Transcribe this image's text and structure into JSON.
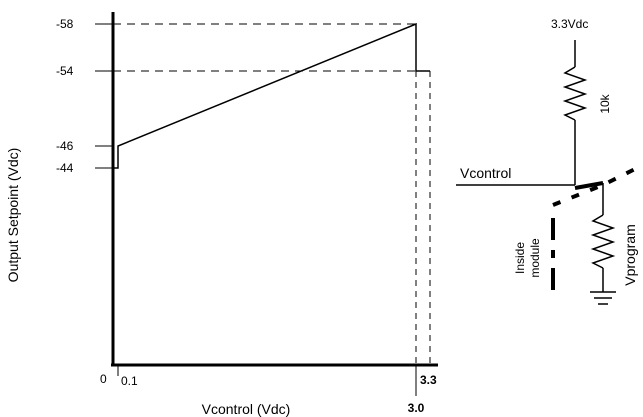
{
  "chart_data": {
    "type": "line",
    "title": "",
    "xlabel": "Vcontrol (Vdc)",
    "ylabel": "Output Setpoint (Vdc)",
    "x_origin_label": "0",
    "x_tick_labels": [
      "0.1",
      "3.0",
      "3.3"
    ],
    "y_tick_labels": [
      "-58",
      "-54",
      "-46",
      "-44"
    ],
    "series": [
      {
        "x": [
          0.0,
          0.1,
          0.1,
          3.0,
          3.0,
          3.3
        ],
        "y": [
          -44,
          -44,
          -46,
          -58,
          -54,
          -54
        ]
      }
    ],
    "xlim": [
      0,
      3.3
    ],
    "ylim": [
      -58,
      -44
    ],
    "grid": false
  },
  "circuit": {
    "supply_label": "3.3Vdc",
    "resistor_label": "10k",
    "node_label": "Vcontrol",
    "program_label": "Vprogram",
    "module_label_line1": "Inside",
    "module_label_line2": "module"
  }
}
